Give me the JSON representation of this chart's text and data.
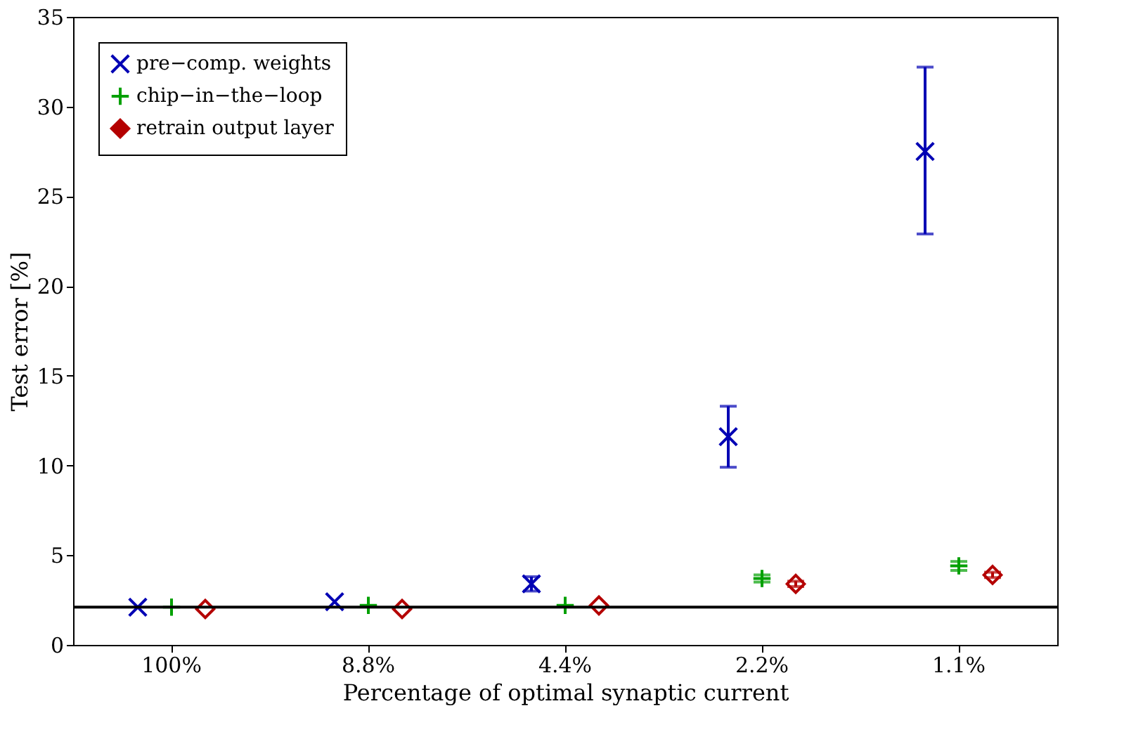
{
  "chart_data": {
    "type": "scatter",
    "xlabel": "Percentage of optimal synaptic current",
    "ylabel": "Test error [%]",
    "categories": [
      "100%",
      "8.8%",
      "4.4%",
      "2.2%",
      "1.1%"
    ],
    "series": [
      {
        "name": "pre−comp. weights",
        "color": "#0000b4",
        "marker": "cross",
        "values": [
          2.1,
          2.4,
          3.4,
          11.6,
          27.5
        ],
        "errors": [
          null,
          null,
          [
            3.0,
            3.8
          ],
          [
            9.9,
            13.3
          ],
          [
            22.9,
            32.2
          ]
        ]
      },
      {
        "name": "chip−in−the−loop",
        "color": "#00a000",
        "marker": "plus",
        "values": [
          2.1,
          2.2,
          2.2,
          3.7,
          4.4
        ],
        "errors": [
          null,
          null,
          null,
          0.2,
          0.25
        ]
      },
      {
        "name": "retrain output layer",
        "color": "#b40000",
        "marker": "diamond",
        "values": [
          2.0,
          2.0,
          2.2,
          3.4,
          3.9
        ],
        "errors": [
          null,
          null,
          null,
          0.15,
          0.15
        ]
      }
    ],
    "ylim": [
      0,
      35
    ],
    "yticks": [
      0,
      5,
      10,
      15,
      20,
      25,
      30,
      35
    ],
    "ref_lines": [
      {
        "axis": "y",
        "value": 2.1,
        "color": "#000000"
      }
    ],
    "grid": false,
    "legend": "top left"
  }
}
